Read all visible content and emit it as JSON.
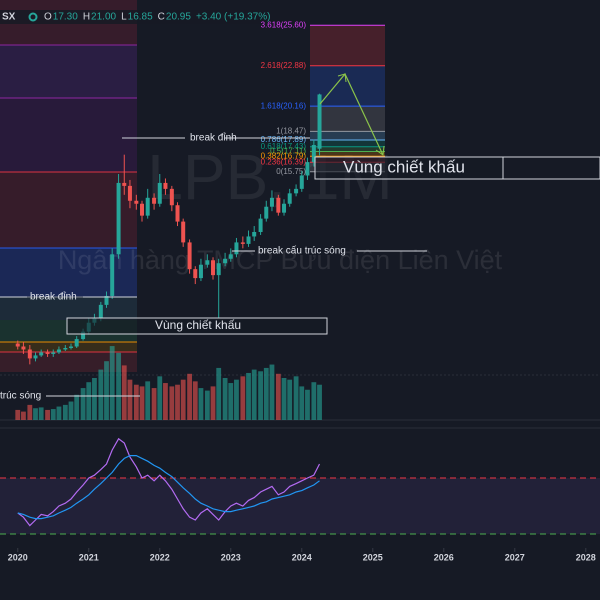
{
  "header": {
    "symbol": "SX",
    "items": [
      {
        "key": "O",
        "value": "17.30"
      },
      {
        "key": "H",
        "value": "21.00"
      },
      {
        "key": "L",
        "value": "16.85"
      },
      {
        "key": "C",
        "value": "20.95"
      }
    ],
    "change": "+3.40 (+19.37%)"
  },
  "watermark": {
    "ticker": "LPB, 1M",
    "company": "Ngân hàng TMCP Bưu điện Liên Việt"
  },
  "chart_data": {
    "type": "candlestick",
    "x": [
      2020,
      2020.08,
      2020.17,
      2020.25,
      2020.33,
      2020.42,
      2020.5,
      2020.58,
      2020.67,
      2020.75,
      2020.83,
      2020.92,
      2021,
      2021.08,
      2021.17,
      2021.25,
      2021.33,
      2021.42,
      2021.5,
      2021.58,
      2021.67,
      2021.75,
      2021.83,
      2021.92,
      2022,
      2022.08,
      2022.17,
      2022.25,
      2022.33,
      2022.42,
      2022.5,
      2022.58,
      2022.67,
      2022.75,
      2022.83,
      2022.92,
      2023,
      2023.08,
      2023.17,
      2023.25,
      2023.33,
      2023.42,
      2023.5,
      2023.58,
      2023.67,
      2023.75,
      2023.83,
      2023.92,
      2024,
      2024.08,
      2024.17,
      2024.25
    ],
    "open": [
      4.2,
      4.0,
      3.8,
      3.2,
      3.4,
      3.6,
      3.5,
      3.6,
      3.8,
      3.9,
      4.0,
      4.5,
      5.0,
      5.6,
      5.9,
      6.8,
      7.4,
      10.2,
      15.0,
      14.8,
      13.8,
      13.6,
      12.8,
      14.0,
      13.6,
      15.0,
      14.6,
      13.5,
      12.4,
      11.0,
      9.2,
      8.6,
      9.5,
      9.8,
      8.8,
      9.6,
      9.9,
      10.2,
      11.0,
      10.9,
      11.4,
      11.7,
      12.6,
      13.4,
      14.0,
      13.0,
      13.6,
      14.3,
      14.6,
      15.5,
      16.4,
      17.3
    ],
    "high": [
      4.4,
      4.3,
      4.1,
      3.6,
      3.8,
      3.8,
      3.8,
      4.0,
      4.1,
      4.2,
      4.7,
      5.2,
      5.9,
      6.2,
      7.0,
      7.7,
      10.6,
      15.6,
      16.9,
      15.2,
      14.2,
      13.8,
      14.6,
      14.3,
      15.6,
      15.3,
      14.8,
      13.7,
      12.6,
      11.2,
      9.4,
      9.9,
      10.2,
      10.0,
      9.9,
      10.3,
      10.6,
      11.3,
      11.4,
      11.8,
      12.1,
      12.9,
      13.8,
      14.5,
      14.2,
      13.9,
      14.6,
      14.9,
      15.8,
      16.7,
      17.9,
      21.0
    ],
    "low": [
      3.8,
      3.5,
      2.8,
      3.0,
      3.3,
      3.3,
      3.3,
      3.5,
      3.7,
      3.8,
      3.9,
      4.4,
      4.8,
      5.4,
      5.7,
      6.6,
      7.2,
      9.9,
      14.2,
      13.3,
      13.2,
      12.4,
      12.6,
      13.2,
      13.4,
      14.2,
      13.1,
      12.1,
      10.7,
      8.9,
      8.2,
      8.4,
      9.3,
      8.5,
      5.9,
      9.4,
      9.7,
      10.0,
      10.6,
      10.7,
      11.1,
      11.5,
      12.4,
      13.1,
      12.8,
      12.8,
      13.4,
      14.1,
      14.4,
      15.2,
      16.1,
      16.85
    ],
    "close": [
      4.0,
      3.8,
      3.2,
      3.4,
      3.6,
      3.5,
      3.6,
      3.8,
      3.9,
      4.0,
      4.5,
      5.0,
      5.6,
      5.9,
      6.8,
      7.4,
      10.2,
      15.0,
      14.8,
      13.8,
      13.6,
      12.8,
      14.0,
      13.6,
      15.0,
      14.6,
      13.5,
      12.4,
      11.0,
      9.2,
      8.6,
      9.5,
      9.8,
      8.8,
      9.6,
      9.9,
      10.2,
      11.0,
      10.9,
      11.4,
      11.7,
      12.6,
      13.4,
      14.0,
      13.0,
      13.6,
      14.3,
      14.6,
      15.5,
      16.4,
      17.55,
      20.95
    ],
    "volume": [
      12,
      10,
      18,
      14,
      15,
      12,
      13,
      16,
      18,
      22,
      30,
      38,
      45,
      50,
      60,
      70,
      88,
      80,
      65,
      48,
      42,
      40,
      46,
      38,
      52,
      44,
      40,
      42,
      48,
      55,
      46,
      38,
      35,
      40,
      62,
      50,
      44,
      48,
      52,
      56,
      60,
      58,
      62,
      66,
      55,
      50,
      48,
      52,
      40,
      36,
      45,
      42
    ],
    "rsi": [
      45,
      42,
      36,
      40,
      44,
      43,
      46,
      50,
      52,
      55,
      60,
      65,
      70,
      72,
      76,
      80,
      90,
      98,
      95,
      85,
      78,
      70,
      72,
      68,
      72,
      68,
      62,
      55,
      48,
      42,
      40,
      45,
      48,
      44,
      40,
      46,
      50,
      52,
      50,
      54,
      56,
      60,
      62,
      64,
      58,
      60,
      64,
      66,
      68,
      70,
      72,
      80
    ],
    "rsi_ma": [
      45,
      44,
      42,
      41,
      41,
      42,
      43,
      45,
      47,
      49,
      52,
      55,
      58,
      62,
      66,
      70,
      74,
      80,
      84,
      86,
      86,
      84,
      82,
      79,
      77,
      74,
      71,
      67,
      63,
      59,
      55,
      52,
      50,
      48,
      47,
      46,
      46,
      47,
      48,
      49,
      50,
      52,
      53,
      55,
      56,
      57,
      58,
      60,
      61,
      63,
      65,
      68
    ],
    "xlim": [
      2019.75,
      2028.2
    ],
    "xticks": [
      2020,
      2021,
      2022,
      2023,
      2024,
      2025,
      2026,
      2027,
      2028
    ],
    "ylim": [
      0,
      27.3
    ],
    "volume_ylim": [
      0,
      100
    ],
    "rsi_ylim": [
      20,
      110
    ],
    "rsi_levels": [
      70,
      30
    ],
    "up_color": "#26a69a",
    "down_color": "#ef5350",
    "fib": [
      {
        "price": 25.6,
        "label": "3.618(25.60)",
        "color": "#e040fb"
      },
      {
        "price": 22.88,
        "label": "2.618(22.88)",
        "color": "#f23645"
      },
      {
        "price": 20.16,
        "label": "1.618(20.16)",
        "color": "#2962ff"
      },
      {
        "price": 18.47,
        "label": "1(18.47)",
        "color": "#9598a1"
      },
      {
        "price": 17.89,
        "label": "0.786(17.89)",
        "color": "#64b5f6"
      },
      {
        "price": 17.43,
        "label": "0.618(17.43)",
        "color": "#089981"
      },
      {
        "price": 17.11,
        "label": "0.5(17.11)",
        "color": "#4caf50"
      },
      {
        "price": 16.79,
        "label": "0.382(16.79)",
        "color": "#ff9800"
      },
      {
        "price": 16.39,
        "label": "0.236(16.39)",
        "color": "#f23645"
      },
      {
        "price": 15.75,
        "label": "0(15.75)",
        "color": "#9598a1"
      }
    ],
    "annotations": [
      "break đỉnh",
      "break đỉnh",
      "break cấu trúc sóng",
      "trúc sóng",
      "Vùng chiết khấu",
      "Vùng chiết khấu"
    ]
  }
}
